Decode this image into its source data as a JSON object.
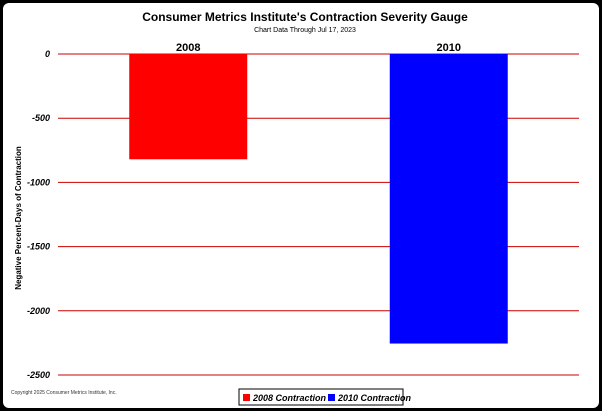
{
  "chart_data": {
    "type": "bar",
    "title": "Consumer Metrics Institute's Contraction Severity Gauge",
    "subtitle": "Chart Data Through Jul 17, 2023",
    "categories": [
      "2008",
      "2010"
    ],
    "series": [
      {
        "name": "2008 Contraction",
        "values": [
          -820,
          null
        ]
      },
      {
        "name": "2010 Contraction",
        "values": [
          null,
          -2255
        ]
      }
    ],
    "ylabel": "Negative Percent-Days of Contraction",
    "ylim": [
      -2500,
      0
    ],
    "yticks": [
      "0",
      "-500",
      "-1000",
      "-1500",
      "-2000",
      "-2500"
    ],
    "grid": true,
    "legend": "bottom",
    "colors": {
      "2008 Contraction": "#ff0000",
      "2010 Contraction": "#0000ff",
      "grid": "#cc0000"
    }
  },
  "footer": {
    "copyright": "Copyright 2025 Consumer Metrics Institute, Inc."
  }
}
